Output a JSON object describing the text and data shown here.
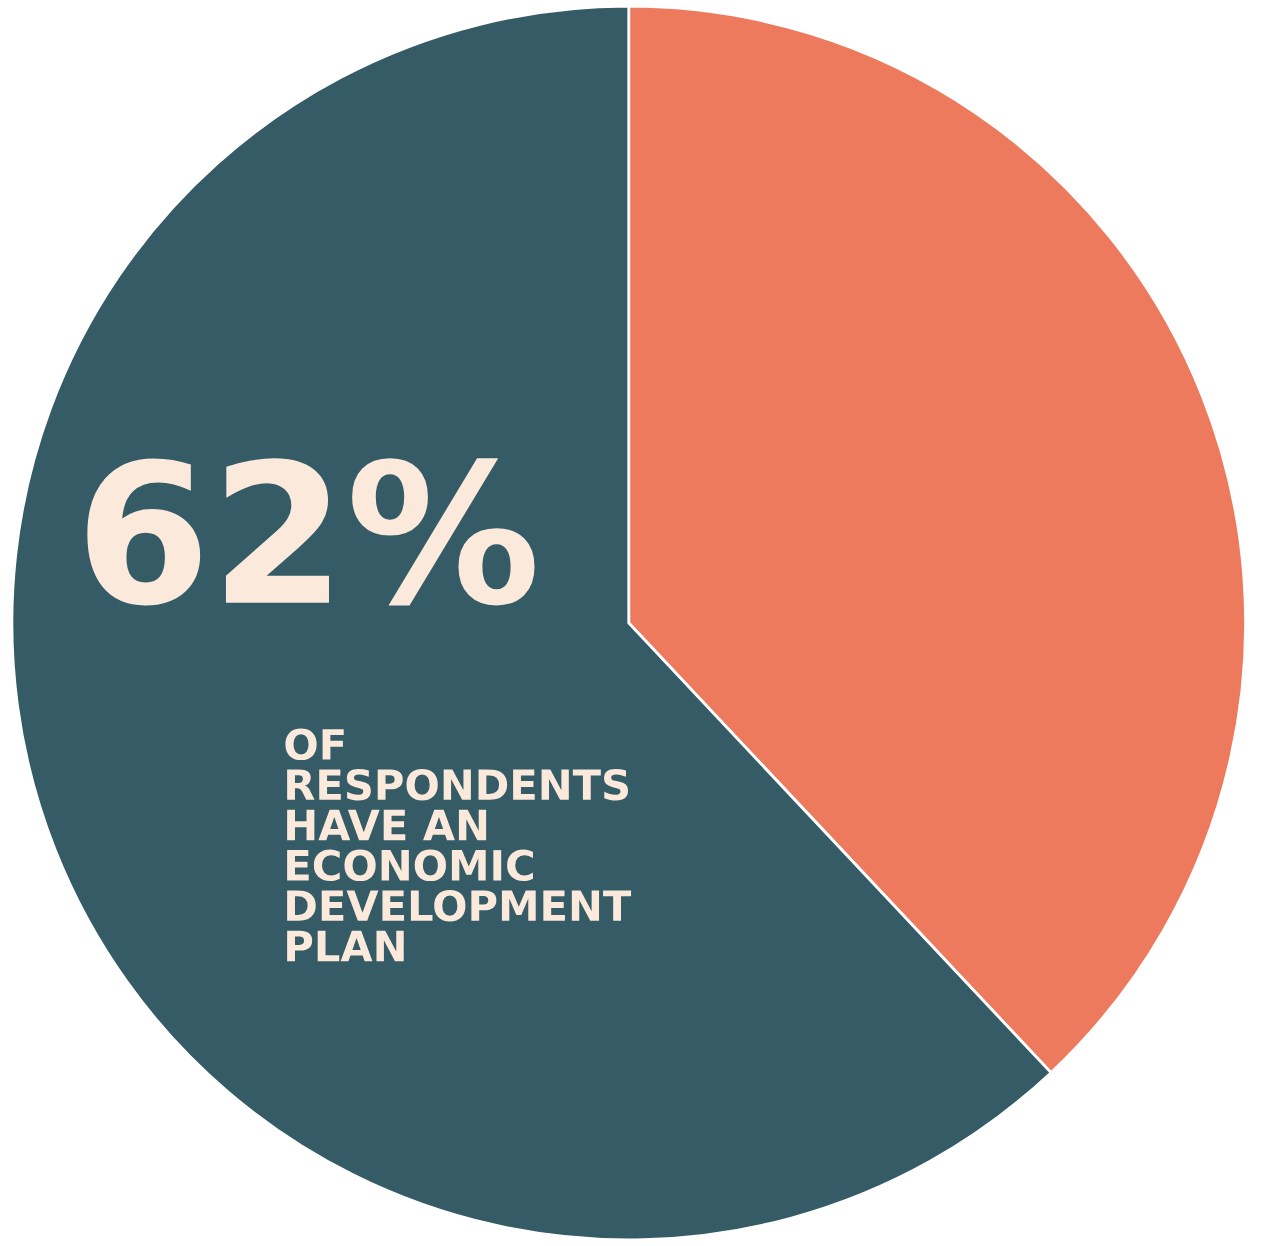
{
  "chart_data": {
    "type": "pie",
    "categories": [
      null,
      null
    ],
    "values": [
      38,
      62
    ],
    "colors": [
      "#ee7a5e",
      "#355b66"
    ],
    "value_labels": [
      null,
      "62%"
    ],
    "annotations": [
      "OF\nRESPONDENTS\nHAVE AN\nECONOMIC\nDEVELOPMENT\nPLAN"
    ]
  }
}
